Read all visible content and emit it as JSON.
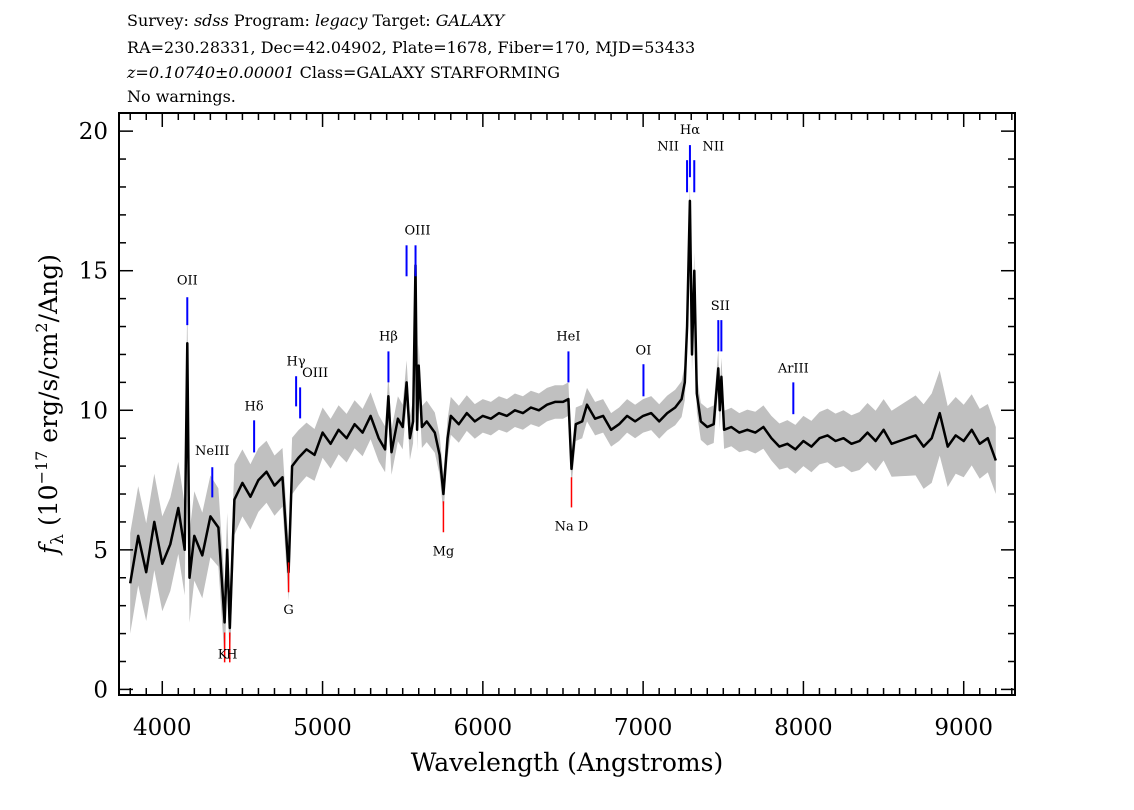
{
  "header": {
    "line1": [
      {
        "text": "Survey: ",
        "italic": false
      },
      {
        "text": "sdss",
        "italic": true
      },
      {
        "text": " Program: ",
        "italic": false
      },
      {
        "text": "legacy",
        "italic": true
      },
      {
        "text": " Target: ",
        "italic": false
      },
      {
        "text": "GALAXY",
        "italic": true
      }
    ],
    "line2": "RA=230.28331, Dec=42.04902, Plate=1678, Fiber=170, MJD=53433",
    "line3_italic": "z=0.10740±0.00001",
    "line3_rest": " Class=GALAXY STARFORMING",
    "line4": "No warnings."
  },
  "chart_data": {
    "type": "line",
    "xlabel": "Wavelength (Angstroms)",
    "ylabel": "fλ (10⁻¹⁷ erg/s/cm²/Ang)",
    "ylabel_parts": {
      "f": "f",
      "sub": "λ",
      "pre": " (10",
      "sup": "−17",
      "mid": " erg/s/cm",
      "sup2": "2",
      "post": "/Ang)"
    },
    "xlim": [
      3730,
      9320
    ],
    "ylim": [
      -0.2,
      20.65
    ],
    "xticks": [
      4000,
      5000,
      6000,
      7000,
      8000,
      9000
    ],
    "xtick_labels": [
      "4000",
      "5000",
      "6000",
      "7000",
      "8000",
      "9000"
    ],
    "yticks": [
      0,
      5,
      10,
      15,
      20
    ],
    "ytick_labels": [
      "0",
      "5",
      "10",
      "15",
      "20"
    ],
    "grid": false,
    "colors": {
      "flux": "#000000",
      "raw": "#c0c0c0",
      "emission": "#0000ff",
      "absorption": "#ff0000"
    },
    "series": [
      {
        "role": "smoothed flux",
        "color": "#000000",
        "x": [
          3800,
          3850,
          3900,
          3950,
          4000,
          4050,
          4100,
          4140,
          4156,
          4170,
          4200,
          4250,
          4300,
          4350,
          4389,
          4405,
          4421,
          4450,
          4500,
          4550,
          4600,
          4650,
          4700,
          4750,
          4788,
          4810,
          4850,
          4900,
          4950,
          5000,
          5050,
          5100,
          5150,
          5200,
          5250,
          5300,
          5350,
          5390,
          5411,
          5430,
          5470,
          5500,
          5524,
          5545,
          5565,
          5580,
          5590,
          5600,
          5620,
          5650,
          5700,
          5730,
          5754,
          5780,
          5800,
          5850,
          5900,
          5950,
          6000,
          6050,
          6100,
          6150,
          6200,
          6250,
          6300,
          6350,
          6400,
          6450,
          6500,
          6534,
          6553,
          6580,
          6620,
          6650,
          6700,
          6750,
          6800,
          6850,
          6900,
          6950,
          7000,
          7050,
          7100,
          7150,
          7200,
          7240,
          7260,
          7274,
          7292,
          7305,
          7319,
          7335,
          7360,
          7400,
          7440,
          7469,
          7478,
          7488,
          7505,
          7550,
          7600,
          7650,
          7700,
          7750,
          7800,
          7850,
          7900,
          7950,
          8000,
          8050,
          8100,
          8150,
          8200,
          8250,
          8300,
          8350,
          8400,
          8450,
          8500,
          8550,
          8600,
          8650,
          8700,
          8750,
          8800,
          8850,
          8900,
          8950,
          9000,
          9050,
          9100,
          9150,
          9200
        ],
        "y": [
          3.8,
          5.5,
          4.2,
          6.0,
          4.5,
          5.2,
          6.5,
          5.0,
          12.4,
          4.0,
          5.5,
          4.8,
          6.2,
          5.8,
          2.4,
          5.0,
          2.2,
          6.8,
          7.4,
          6.9,
          7.5,
          7.8,
          7.3,
          7.6,
          4.2,
          8.0,
          8.3,
          8.6,
          8.4,
          9.2,
          8.8,
          9.3,
          9.0,
          9.5,
          9.2,
          9.8,
          9.0,
          8.6,
          10.5,
          8.5,
          9.7,
          9.4,
          11.0,
          9.0,
          9.6,
          15.2,
          9.3,
          11.6,
          9.4,
          9.6,
          9.2,
          8.4,
          7.0,
          9.0,
          9.8,
          9.5,
          9.9,
          9.6,
          9.8,
          9.7,
          9.9,
          9.8,
          10.0,
          9.9,
          10.1,
          10.0,
          10.2,
          10.3,
          10.3,
          10.4,
          7.9,
          9.5,
          9.6,
          10.2,
          9.7,
          9.8,
          9.3,
          9.5,
          9.8,
          9.6,
          9.8,
          9.9,
          9.6,
          9.9,
          10.1,
          10.4,
          11.0,
          13.0,
          17.5,
          12.0,
          15.0,
          10.6,
          9.6,
          9.4,
          9.5,
          11.5,
          10.0,
          11.2,
          9.3,
          9.4,
          9.2,
          9.3,
          9.2,
          9.4,
          9.0,
          8.7,
          8.8,
          8.6,
          8.9,
          8.7,
          9.0,
          9.1,
          8.9,
          9.0,
          8.8,
          8.9,
          9.2,
          8.9,
          9.3,
          8.8,
          8.9,
          9.0,
          9.1,
          8.7,
          9.0,
          9.9,
          8.7,
          9.1,
          8.9,
          9.3,
          8.8,
          9.0,
          8.2
        ]
      },
      {
        "role": "raw flux scatter (half-width of grey band)",
        "color": "#c0c0c0",
        "x": [
          3800,
          4200,
          4500,
          5000,
          5500,
          6000,
          7000,
          7600,
          8000,
          8500,
          8800,
          9000,
          9200
        ],
        "y": [
          1.8,
          1.6,
          1.2,
          0.9,
          0.8,
          0.6,
          0.6,
          0.7,
          0.9,
          1.1,
          1.6,
          1.3,
          1.2
        ]
      }
    ],
    "lines": [
      {
        "label": "OII",
        "wavelength": 4156,
        "kind": "emission",
        "tick": [
          13.05,
          14.05
        ],
        "label_y": 14.5
      },
      {
        "label": "NeIII",
        "wavelength": 4312,
        "kind": "emission",
        "tick": [
          6.88,
          7.96
        ],
        "label_y": 8.4
      },
      {
        "label": "Hδ",
        "wavelength": 4573,
        "kind": "emission",
        "tick": [
          8.49,
          9.64
        ],
        "label_y": 10.0
      },
      {
        "label": "Hγ",
        "wavelength": 4835,
        "kind": "emission",
        "tick": [
          10.14,
          11.22
        ],
        "label_y": 11.6
      },
      {
        "label": "OIII",
        "wavelength": 4860,
        "kind": "emission",
        "tick": [
          9.71,
          10.82
        ],
        "label_y": 11.2,
        "label_dx": 15
      },
      {
        "label": "Hβ",
        "wavelength": 5411,
        "kind": "emission",
        "tick": [
          11.0,
          12.11
        ],
        "label_y": 12.5
      },
      {
        "label": "",
        "wavelength": 5524,
        "kind": "emission",
        "tick": [
          14.8,
          15.91
        ]
      },
      {
        "label": "OIII",
        "wavelength": 5580,
        "kind": "emission",
        "tick": [
          14.8,
          15.91
        ],
        "label_y": 16.3,
        "label_dx": 2
      },
      {
        "label": "HeI",
        "wavelength": 6534,
        "kind": "emission",
        "tick": [
          11.0,
          12.11
        ],
        "label_y": 12.5
      },
      {
        "label": "OI",
        "wavelength": 7002,
        "kind": "emission",
        "tick": [
          10.5,
          11.65
        ],
        "label_y": 12.0
      },
      {
        "label": "NII",
        "wavelength": 7274,
        "kind": "emission",
        "tick": [
          17.81,
          18.96
        ],
        "label_y": 19.3,
        "label_dx": -19
      },
      {
        "label": "Hα",
        "wavelength": 7292,
        "kind": "emission",
        "tick": [
          18.35,
          19.5
        ],
        "label_y": 19.9
      },
      {
        "label": "NII",
        "wavelength": 7319,
        "kind": "emission",
        "tick": [
          17.81,
          18.96
        ],
        "label_y": 19.3,
        "label_dx": 19
      },
      {
        "label": "SII",
        "wavelength": 7469,
        "kind": "emission",
        "tick": [
          12.11,
          13.23
        ],
        "label_y": 13.6,
        "label_dx": 2
      },
      {
        "label": "",
        "wavelength": 7488,
        "kind": "emission",
        "tick": [
          12.11,
          13.23
        ]
      },
      {
        "label": "ArIII",
        "wavelength": 7937,
        "kind": "emission",
        "tick": [
          9.86,
          11.0
        ],
        "label_y": 11.35
      },
      {
        "label": "K",
        "wavelength": 4389,
        "kind": "absorption",
        "tick": [
          0.97,
          2.04
        ],
        "label_y": 1.1,
        "label_dx": -2
      },
      {
        "label": "H",
        "wavelength": 4421,
        "kind": "absorption",
        "tick": [
          0.97,
          2.04
        ],
        "label_y": 1.1,
        "label_dx": 2
      },
      {
        "label": "G",
        "wavelength": 4788,
        "kind": "absorption",
        "tick": [
          3.48,
          4.55
        ],
        "label_y": 2.7
      },
      {
        "label": "Mg",
        "wavelength": 5754,
        "kind": "absorption",
        "tick": [
          5.63,
          6.74
        ],
        "label_y": 4.8
      },
      {
        "label": "Na D",
        "wavelength": 6553,
        "kind": "absorption",
        "tick": [
          6.52,
          7.6
        ],
        "label_y": 5.7
      }
    ]
  }
}
